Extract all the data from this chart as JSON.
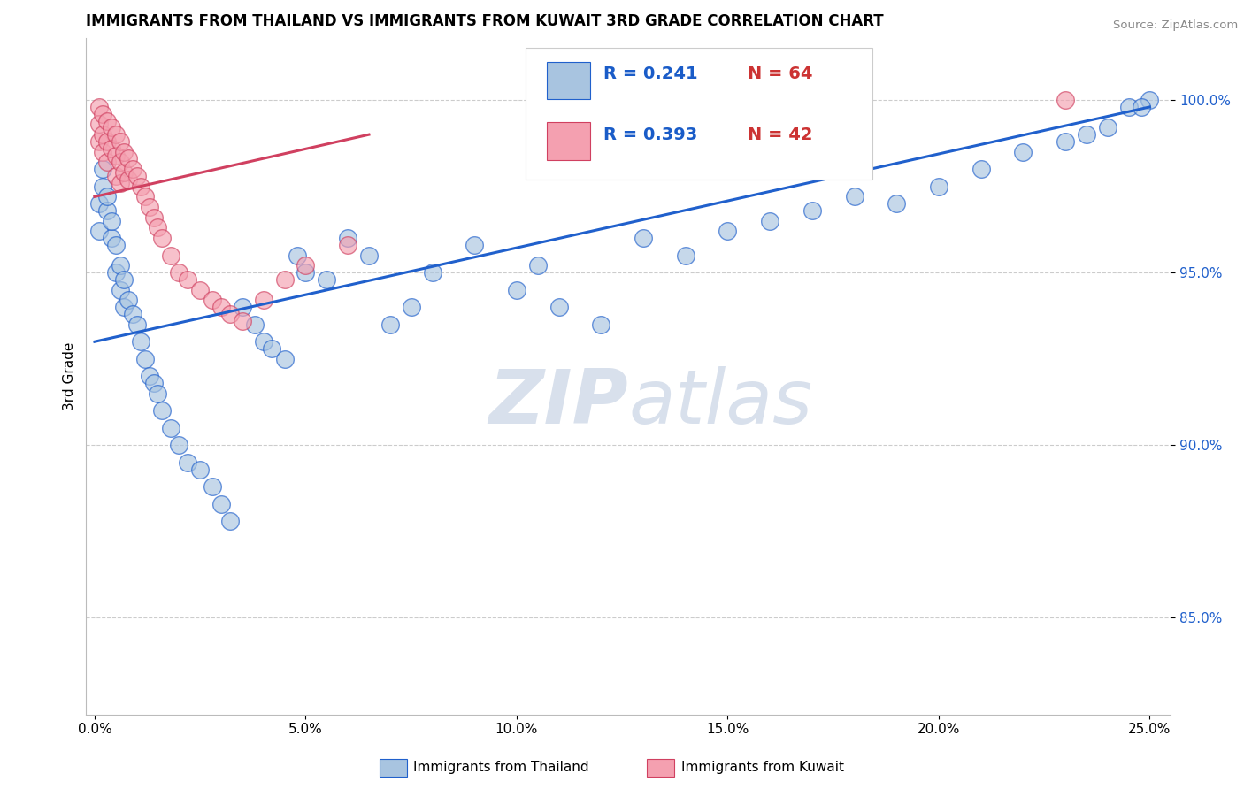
{
  "title": "IMMIGRANTS FROM THAILAND VS IMMIGRANTS FROM KUWAIT 3RD GRADE CORRELATION CHART",
  "source": "Source: ZipAtlas.com",
  "ylabel": "3rd Grade",
  "ytick_labels": [
    "85.0%",
    "90.0%",
    "95.0%",
    "100.0%"
  ],
  "ytick_values": [
    0.85,
    0.9,
    0.95,
    1.0
  ],
  "xtick_values": [
    0.0,
    0.05,
    0.1,
    0.15,
    0.2,
    0.25
  ],
  "xlim": [
    -0.002,
    0.255
  ],
  "ylim": [
    0.822,
    1.018
  ],
  "legend_entries": [
    {
      "label": "Immigrants from Thailand",
      "color": "#a8c4e0",
      "R": "0.241",
      "N": "64"
    },
    {
      "label": "Immigrants from Kuwait",
      "color": "#f4a0b0",
      "R": "0.393",
      "N": "42"
    }
  ],
  "watermark": "ZIPatlas",
  "thailand_scatter_x": [
    0.001,
    0.001,
    0.002,
    0.002,
    0.003,
    0.003,
    0.004,
    0.004,
    0.005,
    0.005,
    0.006,
    0.006,
    0.007,
    0.007,
    0.008,
    0.009,
    0.01,
    0.011,
    0.012,
    0.013,
    0.014,
    0.015,
    0.016,
    0.018,
    0.02,
    0.022,
    0.025,
    0.028,
    0.03,
    0.032,
    0.035,
    0.038,
    0.04,
    0.042,
    0.045,
    0.048,
    0.05,
    0.055,
    0.06,
    0.065,
    0.07,
    0.075,
    0.08,
    0.09,
    0.1,
    0.105,
    0.11,
    0.12,
    0.13,
    0.14,
    0.15,
    0.16,
    0.17,
    0.18,
    0.19,
    0.2,
    0.21,
    0.22,
    0.23,
    0.24,
    0.245,
    0.25,
    0.248,
    0.235
  ],
  "thailand_scatter_y": [
    0.97,
    0.962,
    0.975,
    0.98,
    0.968,
    0.972,
    0.96,
    0.965,
    0.95,
    0.958,
    0.945,
    0.952,
    0.94,
    0.948,
    0.942,
    0.938,
    0.935,
    0.93,
    0.925,
    0.92,
    0.918,
    0.915,
    0.91,
    0.905,
    0.9,
    0.895,
    0.893,
    0.888,
    0.883,
    0.878,
    0.94,
    0.935,
    0.93,
    0.928,
    0.925,
    0.955,
    0.95,
    0.948,
    0.96,
    0.955,
    0.935,
    0.94,
    0.95,
    0.958,
    0.945,
    0.952,
    0.94,
    0.935,
    0.96,
    0.955,
    0.962,
    0.965,
    0.968,
    0.972,
    0.97,
    0.975,
    0.98,
    0.985,
    0.988,
    0.992,
    0.998,
    1.0,
    0.998,
    0.99
  ],
  "kuwait_scatter_x": [
    0.001,
    0.001,
    0.001,
    0.002,
    0.002,
    0.002,
    0.003,
    0.003,
    0.003,
    0.004,
    0.004,
    0.005,
    0.005,
    0.005,
    0.006,
    0.006,
    0.006,
    0.007,
    0.007,
    0.008,
    0.008,
    0.009,
    0.01,
    0.011,
    0.012,
    0.013,
    0.014,
    0.015,
    0.016,
    0.018,
    0.02,
    0.022,
    0.025,
    0.028,
    0.03,
    0.032,
    0.035,
    0.04,
    0.045,
    0.05,
    0.06,
    0.23
  ],
  "kuwait_scatter_y": [
    0.998,
    0.993,
    0.988,
    0.996,
    0.99,
    0.985,
    0.994,
    0.988,
    0.982,
    0.992,
    0.986,
    0.99,
    0.984,
    0.978,
    0.988,
    0.982,
    0.976,
    0.985,
    0.979,
    0.983,
    0.977,
    0.98,
    0.978,
    0.975,
    0.972,
    0.969,
    0.966,
    0.963,
    0.96,
    0.955,
    0.95,
    0.948,
    0.945,
    0.942,
    0.94,
    0.938,
    0.936,
    0.942,
    0.948,
    0.952,
    0.958,
    1.0
  ],
  "thailand_line_x": [
    0.0,
    0.25
  ],
  "thailand_line_y": [
    0.93,
    0.998
  ],
  "kuwait_line_x": [
    0.0,
    0.065
  ],
  "kuwait_line_y": [
    0.972,
    0.99
  ],
  "blue_color": "#a8c4e0",
  "pink_color": "#f4a0b0",
  "blue_line_color": "#2060cc",
  "pink_line_color": "#d04060",
  "grid_color": "#cccccc",
  "watermark_color": "#d8e0ec",
  "legend_r_color": "#1a5cc8",
  "legend_n_color": "#cc3333"
}
